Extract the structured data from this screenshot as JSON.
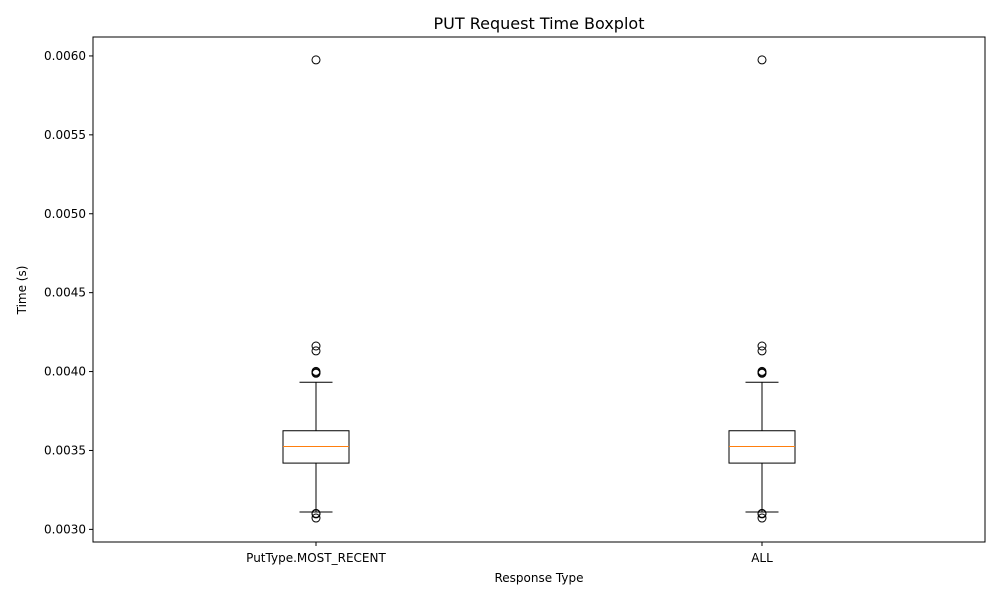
{
  "chart_data": {
    "type": "boxplot",
    "title": "PUT Request Time Boxplot",
    "xlabel": "Response Type",
    "ylabel": "Time (s)",
    "ylim": [
      0.00292,
      0.00612
    ],
    "yticks": [
      0.003,
      0.0035,
      0.004,
      0.0045,
      0.005,
      0.0055,
      0.006
    ],
    "ytick_labels": [
      "0.0030",
      "0.0035",
      "0.0040",
      "0.0045",
      "0.0050",
      "0.0055",
      "0.0060"
    ],
    "categories": [
      "PutType.MOST_RECENT",
      "ALL"
    ],
    "grid": false,
    "colors": {
      "box": "#000000",
      "median": "#ff7f0e",
      "whisker": "#000000",
      "flier": "#000000"
    },
    "boxes": [
      {
        "category": "PutType.MOST_RECENT",
        "whisker_low": 0.00311,
        "q1": 0.00342,
        "median": 0.003525,
        "q3": 0.003625,
        "whisker_high": 0.003932,
        "outliers": [
          0.003072,
          0.003098,
          0.003101,
          0.003989,
          0.003995,
          0.004001,
          0.004131,
          0.004162,
          0.005975
        ]
      },
      {
        "category": "ALL",
        "whisker_low": 0.00311,
        "q1": 0.00342,
        "median": 0.003525,
        "q3": 0.003625,
        "whisker_high": 0.003932,
        "outliers": [
          0.003072,
          0.003098,
          0.003101,
          0.003989,
          0.003995,
          0.004001,
          0.004131,
          0.004162,
          0.005975
        ]
      }
    ]
  }
}
